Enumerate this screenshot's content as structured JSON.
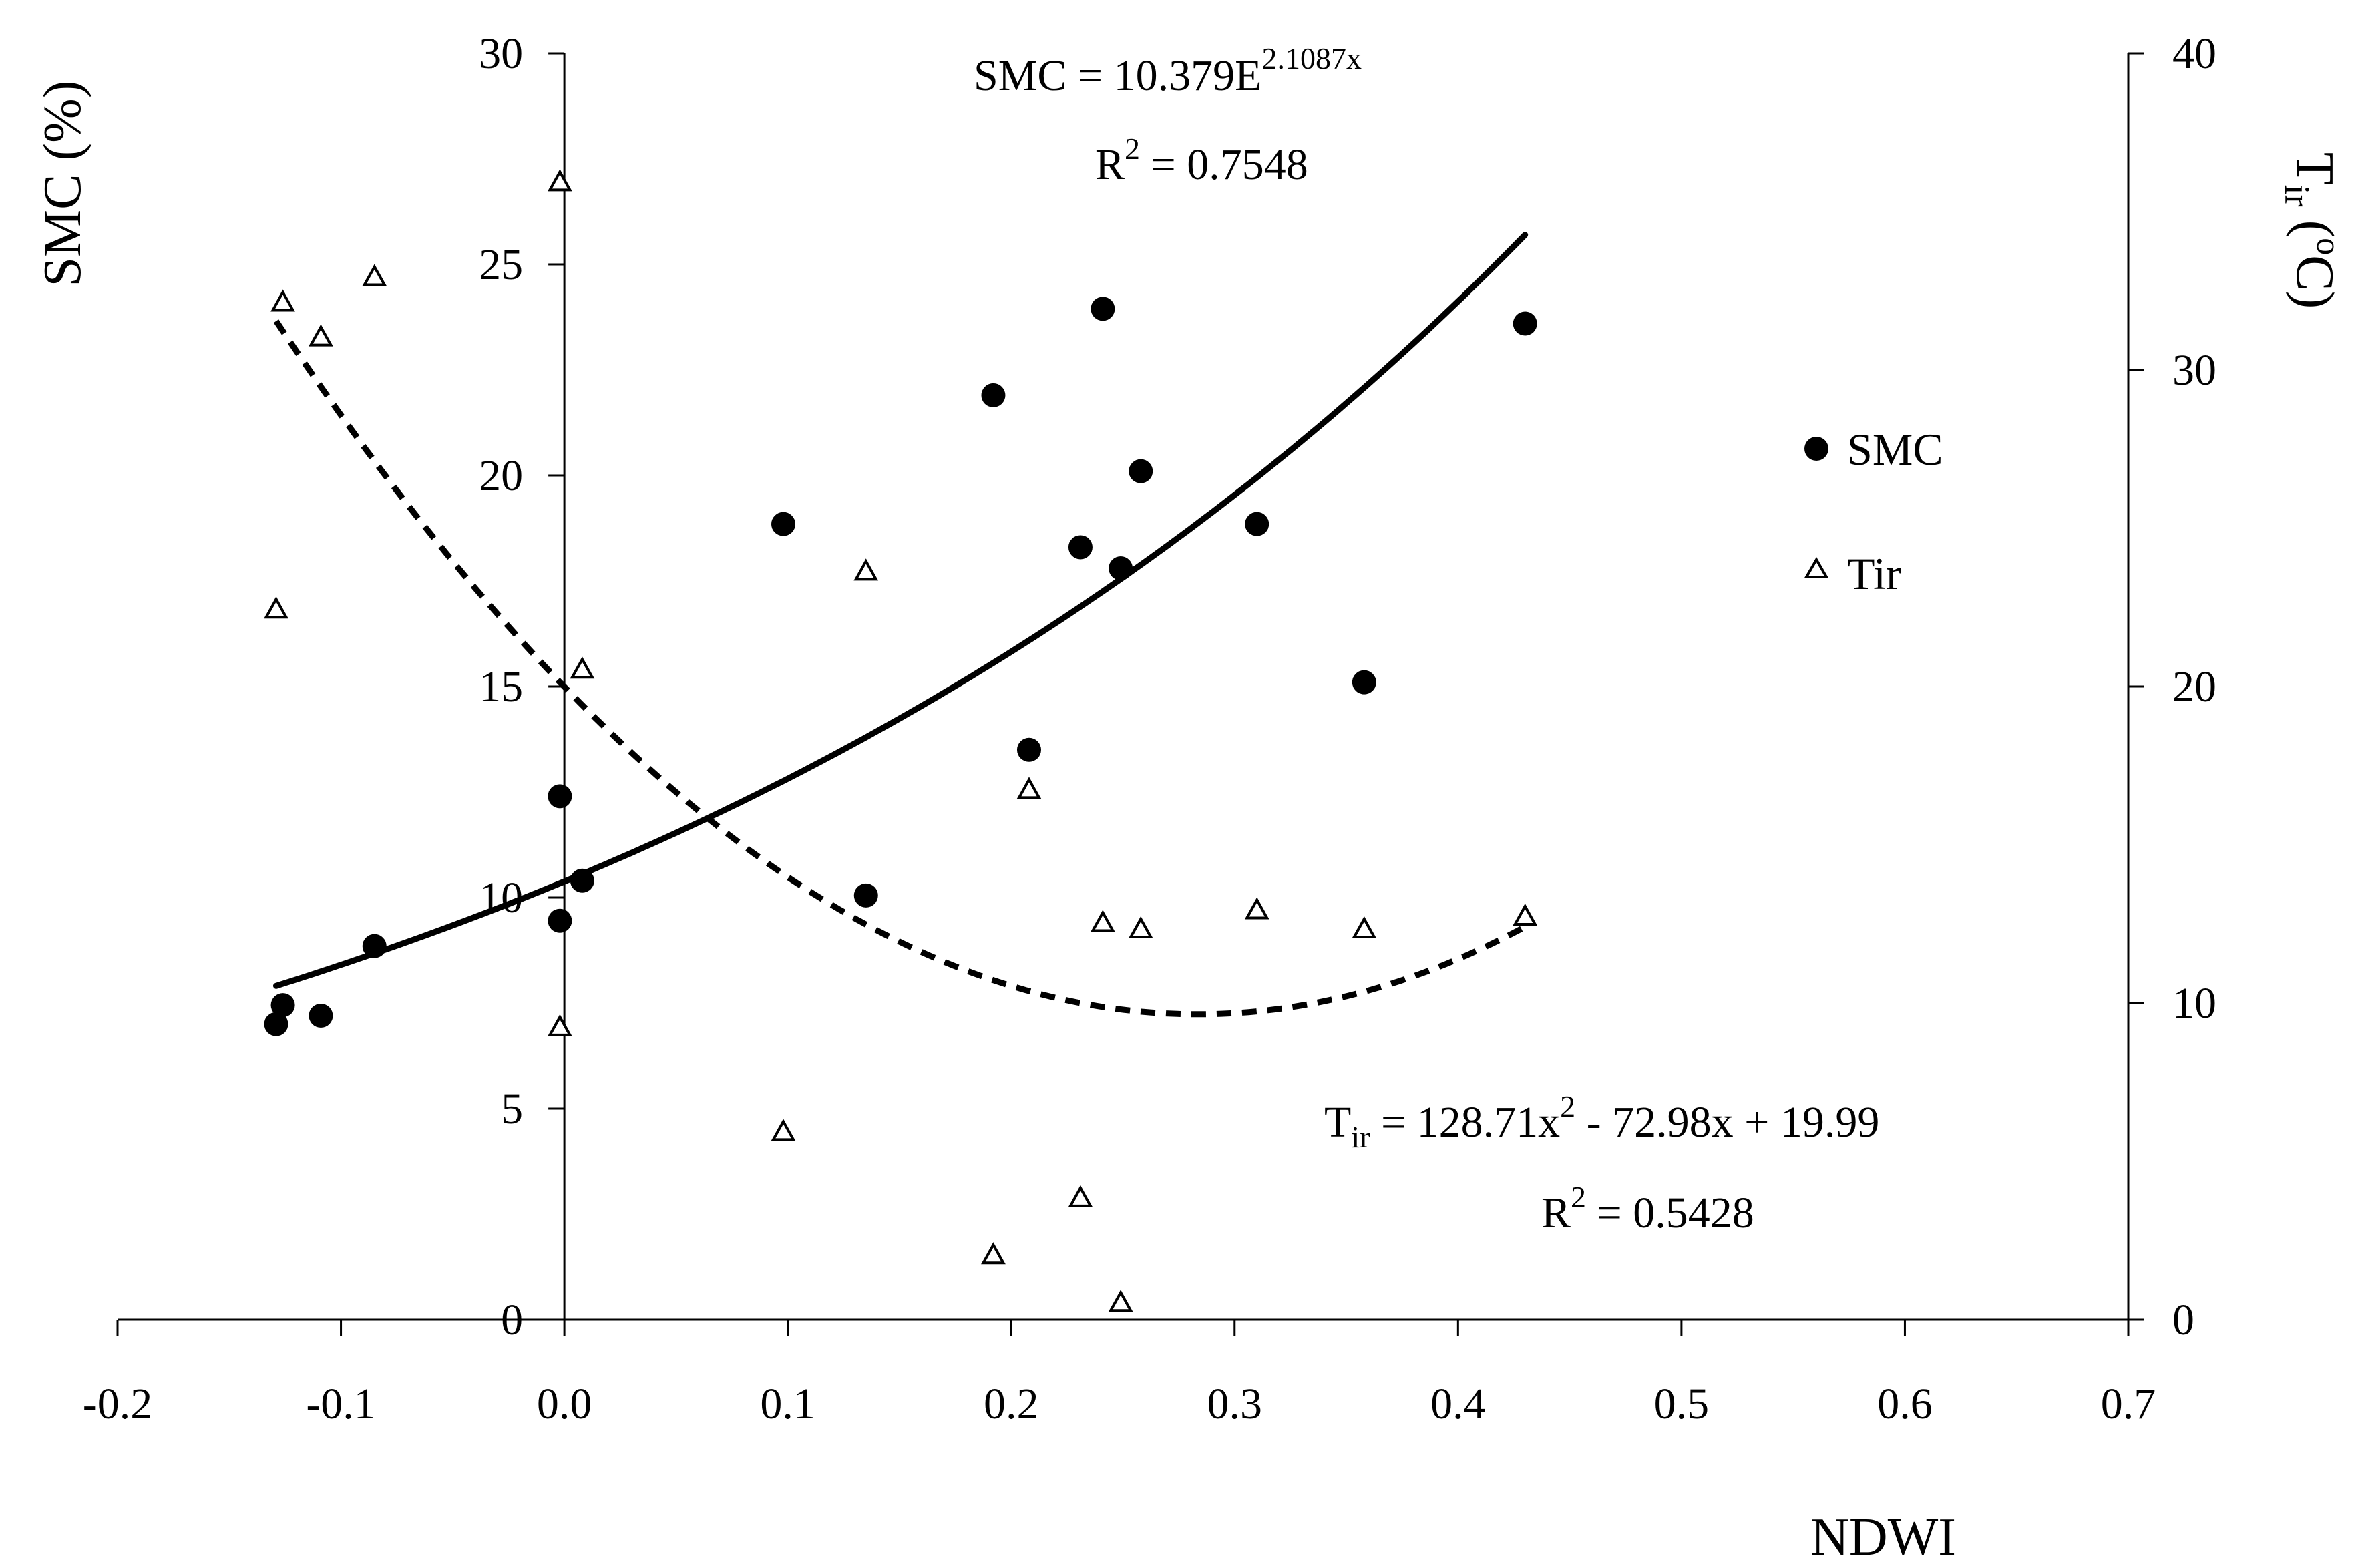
{
  "chart_data": {
    "type": "scatter",
    "title": "",
    "xlabel": "NDWI",
    "ylabel_left": {
      "main": "SMC (%)"
    },
    "ylabel_right": {
      "main": "T",
      "sub": "ir",
      "unit_open": " (",
      "unit_sup": "o",
      "unit_close": "C)"
    },
    "xlim": [
      -0.2,
      0.7
    ],
    "ylim_left": [
      0,
      30
    ],
    "ylim_right": [
      0,
      40
    ],
    "x_ticks": [
      "-0.2",
      "-0.1",
      "0.0",
      "0.1",
      "0.2",
      "0.3",
      "0.4",
      "0.5",
      "0.6",
      "0.7"
    ],
    "x_tick_values": [
      -0.2,
      -0.1,
      0.0,
      0.1,
      0.2,
      0.3,
      0.4,
      0.5,
      0.6,
      0.7
    ],
    "y_left_ticks": [
      "0",
      "5",
      "10",
      "15",
      "20",
      "25",
      "30"
    ],
    "y_left_tick_values": [
      0,
      5,
      10,
      15,
      20,
      25,
      30
    ],
    "y_right_ticks": [
      "0",
      "10",
      "20",
      "30",
      "40"
    ],
    "y_right_tick_values": [
      0,
      10,
      20,
      30,
      40
    ],
    "grid": false,
    "legend_position": "right",
    "series": [
      {
        "name": "SMC",
        "marker": "filled-circle",
        "axis": "left",
        "points": [
          {
            "x": -0.129,
            "y": 7.0
          },
          {
            "x": -0.126,
            "y": 7.45
          },
          {
            "x": -0.109,
            "y": 7.2
          },
          {
            "x": -0.085,
            "y": 8.85
          },
          {
            "x": -0.002,
            "y": 12.4
          },
          {
            "x": -0.002,
            "y": 9.45
          },
          {
            "x": 0.008,
            "y": 10.4
          },
          {
            "x": 0.098,
            "y": 18.85
          },
          {
            "x": 0.135,
            "y": 10.05
          },
          {
            "x": 0.192,
            "y": 21.9
          },
          {
            "x": 0.208,
            "y": 13.5
          },
          {
            "x": 0.231,
            "y": 18.3
          },
          {
            "x": 0.241,
            "y": 23.95
          },
          {
            "x": 0.249,
            "y": 17.8
          },
          {
            "x": 0.258,
            "y": 20.1
          },
          {
            "x": 0.31,
            "y": 18.85
          },
          {
            "x": 0.358,
            "y": 15.1
          },
          {
            "x": 0.43,
            "y": 23.6
          }
        ]
      },
      {
        "name": "Tir",
        "marker": "open-triangle",
        "axis": "right",
        "points": [
          {
            "x": -0.129,
            "y": 22.4
          },
          {
            "x": -0.126,
            "y": 32.1
          },
          {
            "x": -0.109,
            "y": 31.0
          },
          {
            "x": -0.085,
            "y": 32.9
          },
          {
            "x": -0.002,
            "y": 35.9
          },
          {
            "x": -0.002,
            "y": 9.2
          },
          {
            "x": 0.008,
            "y": 20.5
          },
          {
            "x": 0.098,
            "y": 5.9
          },
          {
            "x": 0.135,
            "y": 23.6
          },
          {
            "x": 0.192,
            "y": 2.0
          },
          {
            "x": 0.208,
            "y": 16.7
          },
          {
            "x": 0.231,
            "y": 3.8
          },
          {
            "x": 0.241,
            "y": 12.5
          },
          {
            "x": 0.249,
            "y": 0.5
          },
          {
            "x": 0.258,
            "y": 12.3
          },
          {
            "x": 0.31,
            "y": 12.9
          },
          {
            "x": 0.358,
            "y": 12.3
          },
          {
            "x": 0.43,
            "y": 12.7
          }
        ]
      }
    ],
    "trendlines": [
      {
        "name": "SMC fit",
        "axis": "left",
        "style": "solid",
        "kind": "exponential",
        "a": 10.379,
        "b": 2.1087,
        "x_range": [
          -0.129,
          0.43
        ]
      },
      {
        "name": "Tir fit",
        "axis": "right",
        "style": "dashed",
        "kind": "polynomial",
        "coefficients": [
          128.71,
          -72.98,
          19.99
        ],
        "x_range": [
          -0.129,
          0.43
        ]
      }
    ],
    "annotations": {
      "smc_equation": {
        "base": "SMC = 10.379E",
        "exponent": "2.1087x"
      },
      "smc_r2": {
        "prefix": "R",
        "sup": "2",
        "value": " = 0.7548"
      },
      "tir_equation": {
        "lhs": "T",
        "lhs_sub": "ir",
        "mid": " = 128.71x",
        "sup": "2",
        "rest": " - 72.98x + 19.99"
      },
      "tir_r2": {
        "prefix": "R",
        "sup": "2",
        "value": " = 0.5428"
      }
    }
  }
}
